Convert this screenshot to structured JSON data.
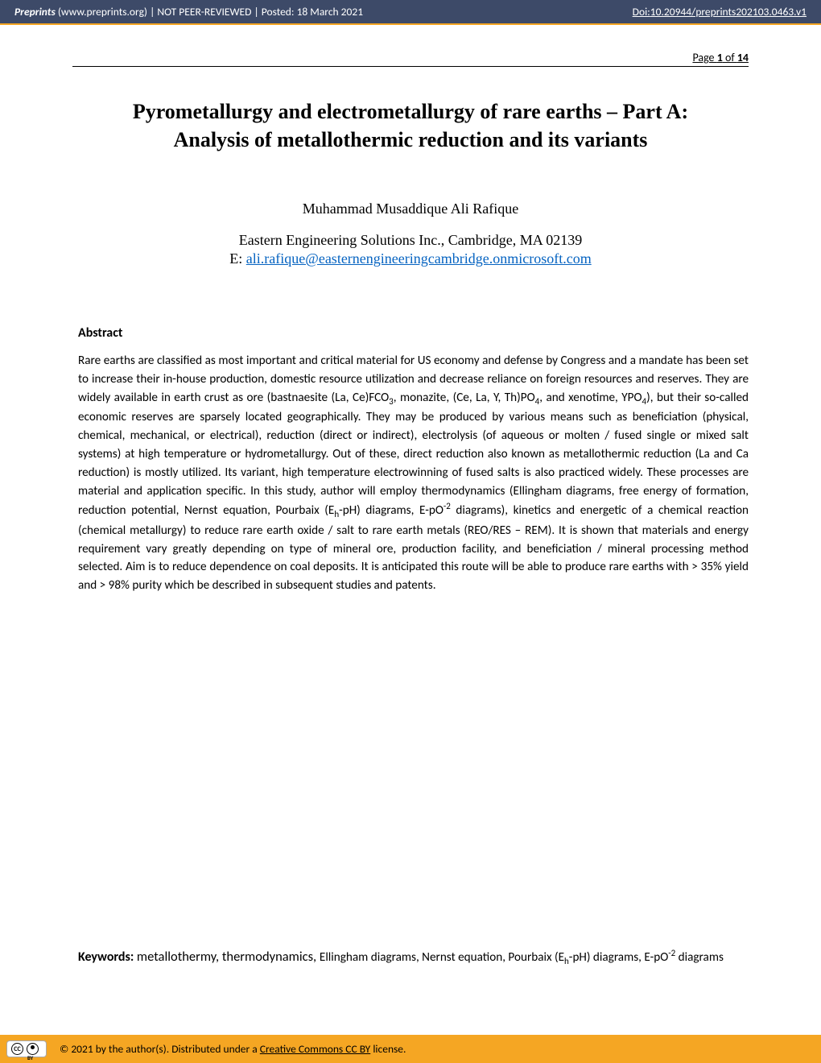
{
  "header": {
    "site_name": "Preprints",
    "site_url": "(www.preprints.org)",
    "divider": "  |  ",
    "peer_status": "NOT PEER-REVIEWED",
    "posted_label": "Posted: ",
    "posted_date": "18 March 2021",
    "doi_label": "Doi:",
    "doi_value": "10.20944/preprints202103.0463.v1",
    "bg_color": "#3d4a68",
    "accent_color": "#f5a623",
    "text_color": "#ffffff"
  },
  "page_info": {
    "prefix": "Page ",
    "current": "1",
    "of": " of ",
    "total": "14"
  },
  "title": {
    "line1": "Pyrometallurgy and electrometallurgy of rare earths – Part A:",
    "line2": "Analysis of metallothermic reduction and its variants",
    "font_family": "Times New Roman",
    "font_size_pt": 20
  },
  "author": "Muhammad Musaddique Ali Rafique",
  "affiliation": "Eastern Engineering Solutions Inc., Cambridge, MA 02139",
  "email": {
    "prefix": "E: ",
    "address": "ali.rafique@easternengineeringcambridge.onmicrosoft.com",
    "link_color": "#0563c1"
  },
  "abstract": {
    "heading": "Abstract",
    "body_html": "Rare earths are classified as most important and critical material for US economy and defense by Congress and a mandate has been set to increase their in-house production, domestic resource utilization and decrease reliance on foreign resources and reserves. They are widely available in earth crust as ore (bastnaesite (La, Ce)FCO<sub>3</sub>, monazite, (Ce, La, Y, Th)PO<sub>4</sub>, and xenotime, YPO<sub>4</sub>), but their so-called economic reserves are sparsely located geographically. They may be produced by various means such as beneficiation (physical, chemical, mechanical, or electrical), reduction (direct or indirect), electrolysis (of aqueous or molten / fused single or mixed salt systems) at high temperature or hydrometallurgy. Out of these, direct reduction also known as metallothermic reduction (La and Ca reduction) is mostly utilized. Its variant, high temperature electrowinning of fused salts is also practiced widely. These processes are material and application specific. In this study, author will employ thermodynamics (Ellingham diagrams, free energy of formation, reduction potential, Nernst equation, Pourbaix (E<sub>h</sub>-pH) diagrams, E-pO<sup>-2</sup> diagrams), kinetics and energetic of a chemical reaction (chemical metallurgy) to reduce rare earth oxide / salt to rare earth metals (REO/RES – REM). It is shown that materials and energy requirement vary greatly depending on type of mineral ore, production facility, and beneficiation / mineral processing method selected. Aim is to reduce dependence on coal deposits. It is anticipated this route will be able to produce rare earths with > 35% yield and > 98% purity which be described in subsequent studies and patents.",
    "font_size_pt": 11
  },
  "keywords": {
    "label": "Keywords: ",
    "big_part": "metallothermy, thermodynamics, ",
    "rest_html": "Ellingham diagrams, Nernst equation, Pourbaix (E<sub>h</sub>-pH) diagrams, E-pO<sup>-2</sup> diagrams"
  },
  "footer": {
    "cc_label": "CC",
    "by_label": "BY",
    "text_prefix": "© 2021 by the author(s). Distributed under a ",
    "link_text": "Creative Commons CC BY",
    "text_suffix": " license.",
    "bg_color": "#f5a623"
  }
}
